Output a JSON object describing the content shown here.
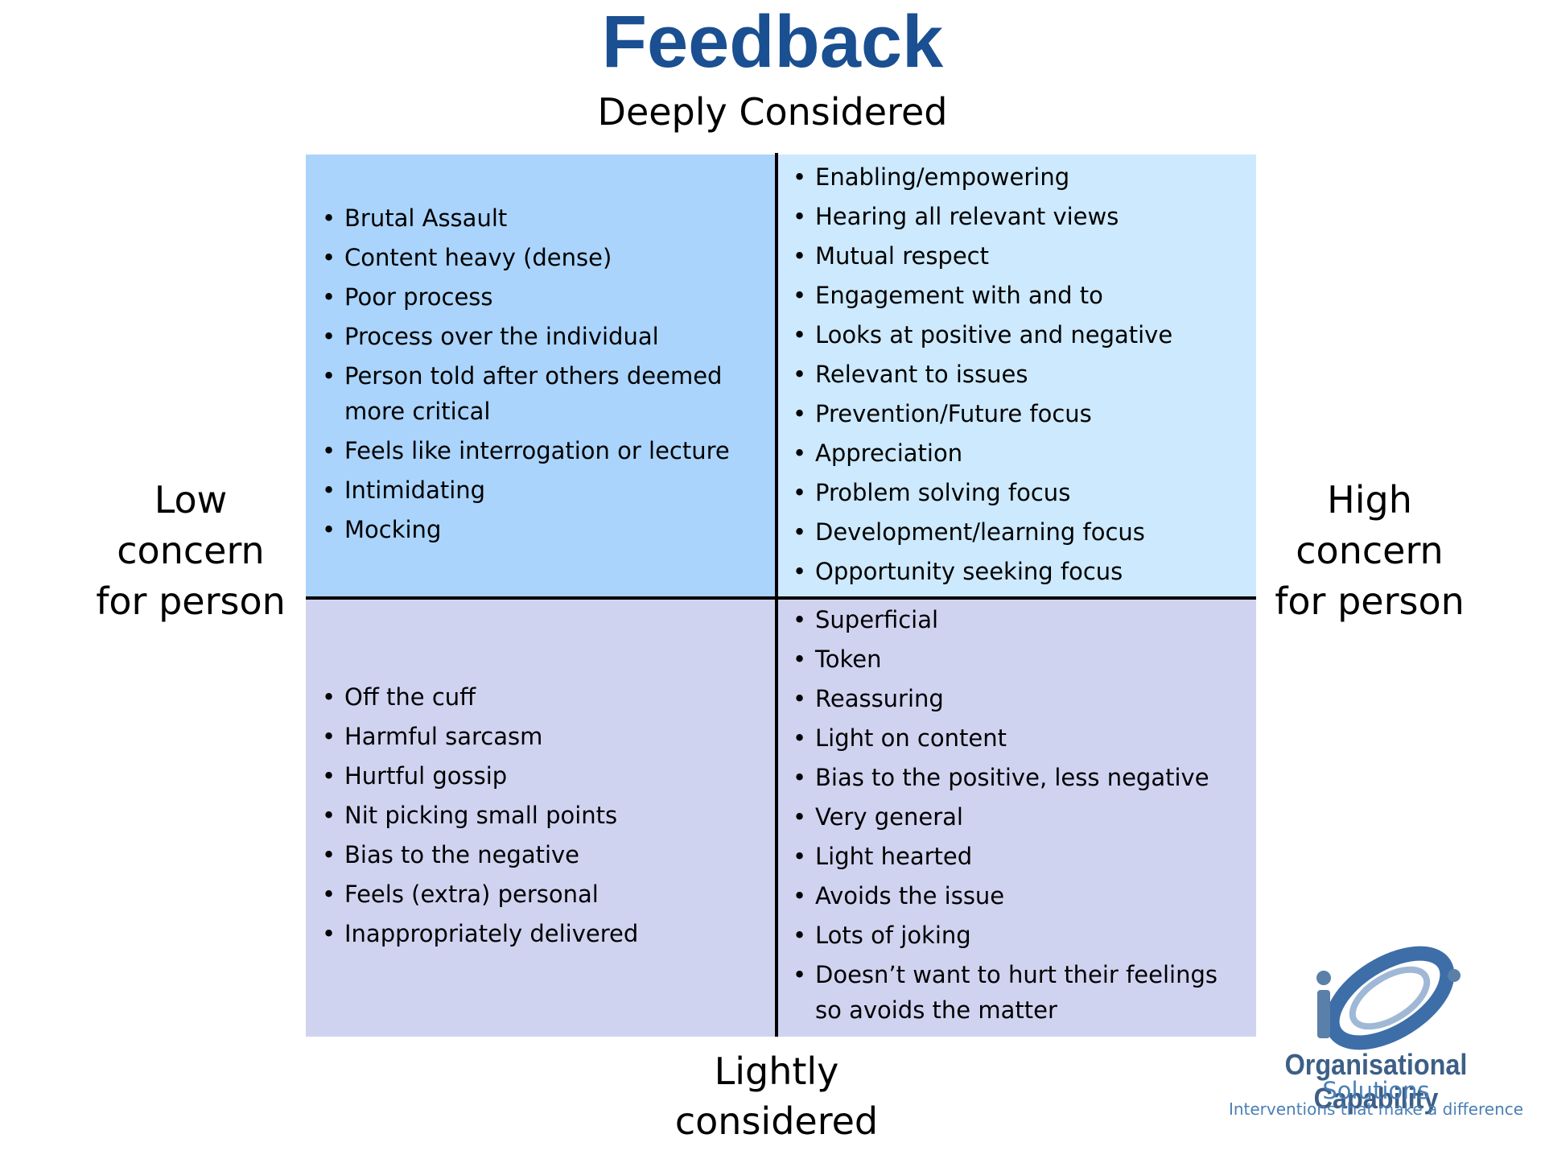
{
  "title": "Feedback",
  "top_label": "Deeply Considered",
  "bottom_label": "Lightly considered",
  "left_label": "Low concern for person",
  "right_label": "High concern for person",
  "quadrants": {
    "top_left": [
      "Brutal Assault",
      "Content heavy (dense)",
      "Poor process",
      "Process over the individual",
      "Person told after others deemed more critical",
      "Feels like interrogation or lecture",
      "Intimidating",
      "Mocking"
    ],
    "top_right": [
      "Enabling/empowering",
      "Hearing all relevant views",
      "Mutual respect",
      "Engagement with and to",
      "Looks at positive and negative",
      "Relevant to issues",
      "Prevention/Future focus",
      "Appreciation",
      "Problem solving focus",
      "Development/learning focus",
      "Opportunity seeking focus"
    ],
    "bottom_left": [
      "Off the cuff",
      "Harmful sarcasm",
      "Hurtful gossip",
      "Nit picking small points",
      "Bias to the negative",
      "Feels (extra) personal",
      "Inappropriately delivered"
    ],
    "bottom_right": [
      "Superficial",
      "Token",
      "Reassuring",
      "Light on content",
      "Bias to the positive, less negative",
      "Very general",
      "Light hearted",
      "Avoids the issue",
      "Lots of joking",
      "Doesn’t want to hurt their feelings so avoids the matter"
    ]
  },
  "logo": {
    "name": "Organisational Capability",
    "subname": "Solutions",
    "tagline": "Interventions that make a difference"
  }
}
